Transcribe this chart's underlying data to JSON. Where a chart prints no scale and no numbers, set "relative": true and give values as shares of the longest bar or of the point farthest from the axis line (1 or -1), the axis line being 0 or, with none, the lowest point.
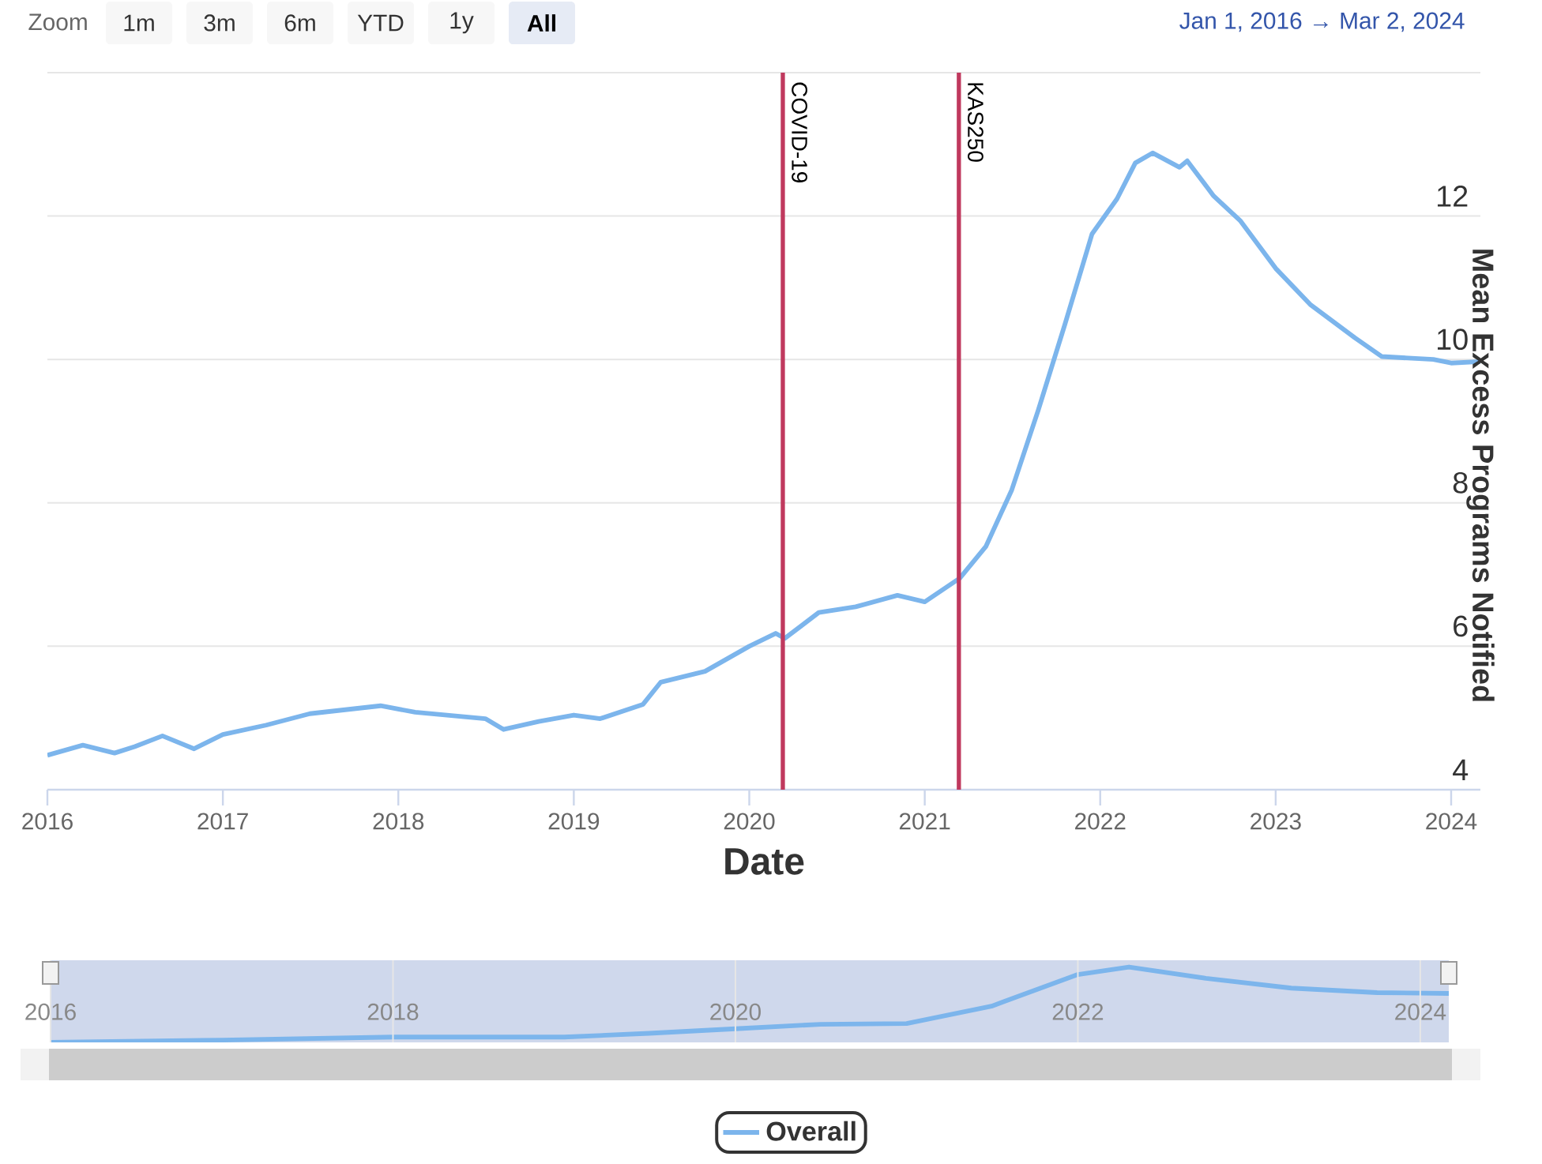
{
  "chart_data": [
    {
      "type": "line",
      "xlabel": "Date",
      "ylabel": "Mean Excess Programs Notified",
      "annotations": [
        "Zoom",
        "1m",
        "3m",
        "6m",
        "YTD",
        "1y",
        "All",
        "Jan 1, 2016 → Mar 2, 2024"
      ],
      "x": [
        "2016-01-01",
        "2016-03-15",
        "2016-05-20",
        "2016-07-01",
        "2016-08-28",
        "2016-11-02",
        "2017-01-01",
        "2017-04-01",
        "2017-07-01",
        "2017-11-25",
        "2018-02-05",
        "2018-07-01",
        "2018-08-08",
        "2018-10-20",
        "2019-01-01",
        "2019-02-25",
        "2019-05-25",
        "2019-07-01",
        "2019-10-01",
        "2020-01-01",
        "2020-02-25",
        "2020-03-15",
        "2020-05-25",
        "2020-08-10",
        "2020-11-05",
        "2021-01-01",
        "2021-03-15",
        "2021-05-08",
        "2021-07-01",
        "2021-08-25",
        "2021-10-20",
        "2021-12-15",
        "2022-02-05",
        "2022-03-15",
        "2022-04-20",
        "2022-06-15",
        "2022-07-01",
        "2022-08-25",
        "2022-10-20",
        "2023-01-01",
        "2023-03-15",
        "2023-06-15",
        "2023-08-10",
        "2023-11-25",
        "2024-01-01",
        "2024-03-02"
      ],
      "series": [
        {
          "name": "Overall",
          "color": "#7cb5ec",
          "values": [
            4.48,
            4.62,
            4.51,
            4.6,
            4.75,
            4.57,
            4.77,
            4.9,
            5.06,
            5.17,
            5.08,
            4.99,
            4.84,
            4.95,
            5.04,
            4.99,
            5.19,
            5.5,
            5.65,
            6.0,
            6.18,
            6.11,
            6.47,
            6.55,
            6.71,
            6.62,
            6.95,
            7.39,
            8.18,
            9.29,
            10.5,
            11.75,
            12.24,
            12.74,
            12.88,
            12.68,
            12.77,
            12.28,
            11.93,
            11.27,
            10.76,
            10.3,
            10.04,
            10.0,
            9.95,
            9.97
          ]
        }
      ],
      "xlim": [
        "2016-01-01",
        "2024-03-02"
      ],
      "xticks": [
        "2016",
        "2017",
        "2018",
        "2019",
        "2020",
        "2021",
        "2022",
        "2023",
        "2024"
      ],
      "ylim": [
        4,
        14
      ],
      "yticks": [
        4,
        6,
        8,
        10,
        12,
        {
          "value": 14,
          "label": null
        }
      ],
      "grid": "y",
      "legend": "bottom",
      "ref_lines": [
        {
          "axis": "x",
          "value": "2020-03-11",
          "label": "COVID-19",
          "color": "#c0395e"
        },
        {
          "axis": "x",
          "value": "2021-03-13",
          "label": "KAS250",
          "color": "#c0395e"
        }
      ]
    },
    {
      "type": "line",
      "relative": true,
      "color": "#7cb5ec",
      "x": [
        "2016-01-01",
        "2017-01-01",
        "2018-01-01",
        "2019-01-01",
        "2019-07-01",
        "2020-01-01",
        "2020-07-01",
        "2021-01-01",
        "2021-07-01",
        "2022-01-01",
        "2022-04-20",
        "2022-10-01",
        "2023-04-01",
        "2023-10-01",
        "2024-03-02"
      ],
      "values": [
        0.0,
        0.03,
        0.07,
        0.07,
        0.12,
        0.18,
        0.24,
        0.25,
        0.48,
        0.9,
        1.0,
        0.85,
        0.72,
        0.66,
        0.65
      ],
      "xlim": [
        "2016-01-01",
        "2024-03-02"
      ],
      "xticks": [
        "2016",
        "2018",
        "2020",
        "2022",
        "2024"
      ],
      "grid": "x",
      "bands": [
        {
          "axis": "x",
          "from": "2016-01-01",
          "to": "2024-03-02",
          "color": "#cfd8ec"
        }
      ]
    }
  ]
}
